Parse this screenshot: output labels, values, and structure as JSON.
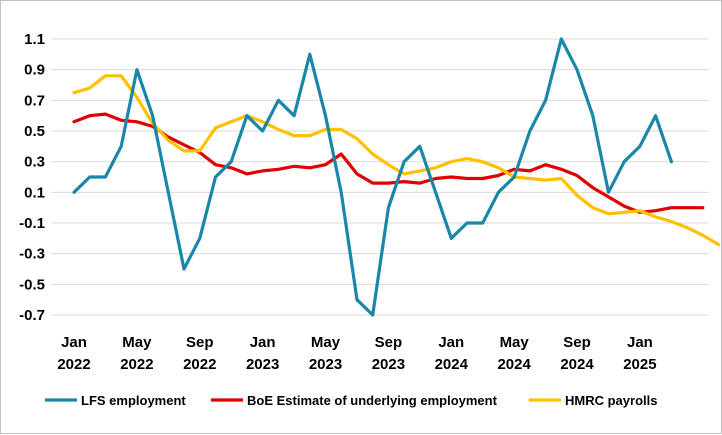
{
  "chart_data": {
    "type": "line",
    "title": "",
    "xlabel": "",
    "ylabel": "",
    "ylim": [
      -0.7,
      1.1
    ],
    "y_ticks": [
      "1.1",
      "0.9",
      "0.7",
      "0.5",
      "0.3",
      "0.1",
      "-0.1",
      "-0.3",
      "-0.5",
      "-0.7"
    ],
    "x_ticks": [
      {
        "month": "Jan",
        "year": "2022"
      },
      {
        "month": "May",
        "year": "2022"
      },
      {
        "month": "Sep",
        "year": "2022"
      },
      {
        "month": "Jan",
        "year": "2023"
      },
      {
        "month": "May",
        "year": "2023"
      },
      {
        "month": "Sep",
        "year": "2023"
      },
      {
        "month": "Jan",
        "year": "2024"
      },
      {
        "month": "May",
        "year": "2024"
      },
      {
        "month": "Sep",
        "year": "2024"
      },
      {
        "month": "Jan",
        "year": "2025"
      }
    ],
    "x_range": [
      "2022-01",
      "2025-05"
    ],
    "grid": "horizontal",
    "legend_position": "bottom",
    "series": [
      {
        "name": "LFS employment",
        "color": "#1a86a8",
        "start": "2022-01",
        "values": [
          0.1,
          0.2,
          0.2,
          0.4,
          0.9,
          0.6,
          0.1,
          -0.4,
          -0.2,
          0.2,
          0.3,
          0.6,
          0.5,
          0.7,
          0.6,
          1.0,
          0.6,
          0.1,
          -0.6,
          -0.7,
          0.0,
          0.3,
          0.4,
          0.1,
          -0.2,
          -0.1,
          -0.1,
          0.1,
          0.2,
          0.5,
          0.7,
          1.1,
          0.9,
          0.6,
          0.1,
          0.3,
          0.4,
          0.6,
          0.3
        ]
      },
      {
        "name": "BoE Estimate of underlying employment",
        "color": "#e00000",
        "start": "2022-01",
        "values": [
          0.56,
          0.6,
          0.61,
          0.57,
          0.56,
          0.53,
          0.46,
          0.41,
          0.36,
          0.28,
          0.26,
          0.22,
          0.24,
          0.25,
          0.27,
          0.26,
          0.28,
          0.35,
          0.22,
          0.16,
          0.16,
          0.17,
          0.16,
          0.19,
          0.2,
          0.19,
          0.19,
          0.21,
          0.25,
          0.24,
          0.28,
          0.25,
          0.21,
          0.13,
          0.07,
          0.01,
          -0.03,
          -0.02,
          0.0,
          0.0,
          0.0
        ]
      },
      {
        "name": "HMRC payrolls",
        "color": "#ffc000",
        "start": "2022-01",
        "values": [
          0.75,
          0.78,
          0.86,
          0.86,
          0.72,
          0.55,
          0.44,
          0.37,
          0.37,
          0.52,
          0.56,
          0.6,
          0.56,
          0.51,
          0.47,
          0.47,
          0.51,
          0.51,
          0.45,
          0.35,
          0.28,
          0.22,
          0.24,
          0.26,
          0.3,
          0.32,
          0.3,
          0.26,
          0.2,
          0.19,
          0.18,
          0.19,
          0.08,
          0.0,
          -0.04,
          -0.03,
          -0.02,
          -0.06,
          -0.09,
          -0.13,
          -0.18,
          -0.24
        ]
      }
    ]
  }
}
